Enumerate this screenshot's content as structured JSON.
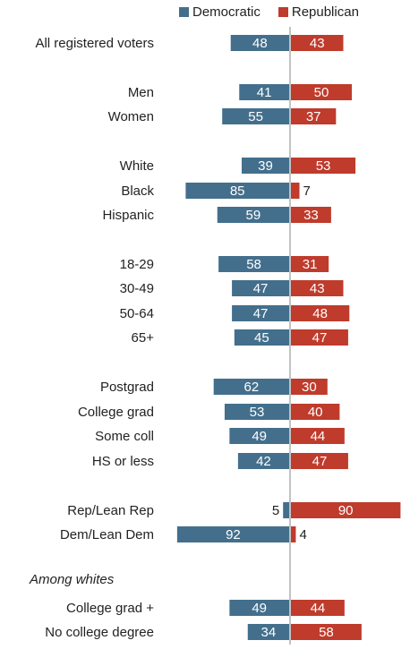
{
  "colors": {
    "democratic": "#436f8c",
    "republican": "#bf3b2c",
    "axis": "#999999"
  },
  "legend": {
    "democratic": "Democratic",
    "republican": "Republican"
  },
  "chart_data": {
    "type": "bar",
    "orientation": "horizontal-diverging",
    "series": [
      {
        "name": "Democratic",
        "values": [
          48,
          41,
          55,
          39,
          85,
          59,
          58,
          47,
          47,
          45,
          62,
          53,
          49,
          42,
          5,
          92,
          49,
          34
        ]
      },
      {
        "name": "Republican",
        "values": [
          43,
          50,
          37,
          53,
          7,
          33,
          31,
          43,
          48,
          47,
          30,
          40,
          44,
          47,
          90,
          4,
          44,
          58
        ]
      }
    ],
    "categories": [
      "All registered voters",
      "Men",
      "Women",
      "White",
      "Black",
      "Hispanic",
      "18-29",
      "30-49",
      "50-64",
      "65+",
      "Postgrad",
      "College grad",
      "Some coll",
      "HS or less",
      "Rep/Lean Rep",
      "Dem/Lean Dem",
      "College grad +",
      "No college degree"
    ],
    "section_headers": [
      {
        "before_index": 16,
        "label": "Among whites"
      }
    ],
    "legend_position": "top",
    "grid": false
  }
}
